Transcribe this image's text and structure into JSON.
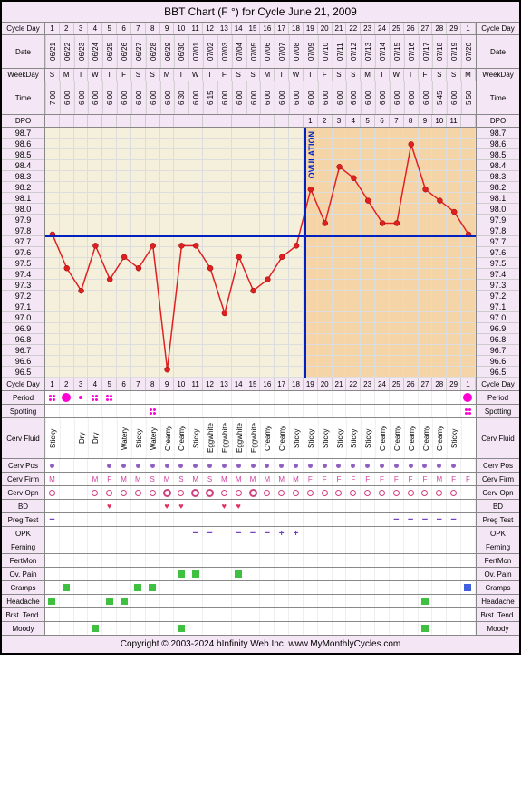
{
  "title": "BBT Chart (F °) for Cycle June 21, 2009",
  "footer": "Copyright © 2003-2024 bInfinity Web Inc.   www.MyMonthlyCycles.com",
  "days": 30,
  "ovulation_day": 18,
  "coverline_temp": 97.75,
  "ylim": [
    96.5,
    98.7
  ],
  "ytick_step": 0.1,
  "pre_ov_bg": "#f5f0dc",
  "post_ov_bg": "#f5d5a8",
  "line_color": "#e02020",
  "point_color": "#e02020",
  "labels": {
    "cycle_day": "Cycle Day",
    "date": "Date",
    "weekday": "WeekDay",
    "time": "Time",
    "dpo": "DPO",
    "period": "Period",
    "spotting": "Spotting",
    "cerv_fluid": "Cerv Fluid",
    "cerv_pos": "Cerv Pos",
    "cerv_firm": "Cerv Firm",
    "cerv_opn": "Cerv Opn",
    "bd": "BD",
    "preg_test": "Preg Test",
    "opk": "OPK",
    "ferning": "Ferning",
    "fertmon": "FertMon",
    "ov_pain": "Ov. Pain",
    "cramps": "Cramps",
    "headache": "Headache",
    "brst_tend": "Brst. Tend.",
    "moody": "Moody",
    "ovulation": "OVULATION"
  },
  "cycle_days": [
    1,
    2,
    3,
    4,
    5,
    6,
    7,
    8,
    9,
    10,
    11,
    12,
    13,
    14,
    15,
    16,
    17,
    18,
    19,
    20,
    21,
    22,
    23,
    24,
    25,
    26,
    27,
    28,
    29,
    1
  ],
  "dates": [
    "06/21",
    "06/22",
    "06/23",
    "06/24",
    "06/25",
    "06/26",
    "06/27",
    "06/28",
    "06/29",
    "06/30",
    "07/01",
    "07/02",
    "07/03",
    "07/04",
    "07/05",
    "07/06",
    "07/07",
    "07/08",
    "07/09",
    "07/10",
    "07/11",
    "07/12",
    "07/13",
    "07/14",
    "07/15",
    "07/16",
    "07/17",
    "07/18",
    "07/19",
    "07/20"
  ],
  "weekdays": [
    "S",
    "M",
    "T",
    "W",
    "T",
    "F",
    "S",
    "S",
    "M",
    "T",
    "W",
    "T",
    "F",
    "S",
    "S",
    "M",
    "T",
    "W",
    "T",
    "F",
    "S",
    "S",
    "M",
    "T",
    "W",
    "T",
    "F",
    "S",
    "S",
    "M"
  ],
  "times": [
    "7:00",
    "6:00",
    "6:00",
    "6:00",
    "6:00",
    "6:00",
    "6:00",
    "6:00",
    "6:00",
    "6:30",
    "6:00",
    "6:15",
    "6:00",
    "6:00",
    "6:00",
    "6:00",
    "6:00",
    "6:00",
    "6:00",
    "6:00",
    "6:00",
    "6:00",
    "6:00",
    "6:00",
    "6:00",
    "6:00",
    "6:00",
    "5:45",
    "6:00",
    "5:50"
  ],
  "dpo": [
    "",
    "",
    "",
    "",
    "",
    "",
    "",
    "",
    "",
    "",
    "",
    "",
    "",
    "",
    "",
    "",
    "",
    "",
    "1",
    "2",
    "3",
    "4",
    "5",
    "6",
    "7",
    "8",
    "9",
    "10",
    "11",
    ""
  ],
  "temps": [
    97.8,
    97.5,
    97.3,
    97.7,
    97.4,
    97.6,
    97.5,
    97.7,
    96.6,
    97.7,
    97.7,
    97.5,
    97.1,
    97.6,
    97.3,
    97.4,
    97.6,
    97.7,
    98.2,
    97.9,
    98.4,
    98.3,
    98.1,
    97.9,
    97.9,
    98.6,
    98.2,
    98.1,
    98.0,
    97.8
  ],
  "period": [
    "dots",
    "big",
    "dot",
    "dots",
    "dots",
    "",
    "",
    "",
    "",
    "",
    "",
    "",
    "",
    "",
    "",
    "",
    "",
    "",
    "",
    "",
    "",
    "",
    "",
    "",
    "",
    "",
    "",
    "",
    "",
    "big"
  ],
  "spotting": [
    "",
    "",
    "",
    "",
    "",
    "",
    "",
    "4",
    "",
    "",
    "",
    "",
    "",
    "",
    "",
    "",
    "",
    "",
    "",
    "",
    "",
    "",
    "",
    "",
    "",
    "",
    "",
    "",
    "",
    "4"
  ],
  "cerv_fluid": [
    "Sticky",
    "",
    "Dry",
    "Dry",
    "",
    "Watery",
    "Sticky",
    "Watery",
    "Creamy",
    "Creamy",
    "Sticky",
    "Eggwhite",
    "Eggwhite",
    "Eggwhite",
    "Eggwhite",
    "Creamy",
    "Creamy",
    "Sticky",
    "Sticky",
    "Sticky",
    "Sticky",
    "Sticky",
    "Sticky",
    "Creamy",
    "Creamy",
    "Creamy",
    "Creamy",
    "Creamy",
    "Sticky",
    ""
  ],
  "cerv_pos": [
    "d",
    "",
    "",
    "",
    "d",
    "d",
    "d",
    "d",
    "d",
    "d",
    "d",
    "d",
    "d",
    "d",
    "d",
    "d",
    "d",
    "d",
    "d",
    "d",
    "d",
    "d",
    "d",
    "d",
    "d",
    "d",
    "d",
    "d",
    "d",
    ""
  ],
  "cerv_firm": [
    "M",
    "",
    "",
    "M",
    "F",
    "M",
    "M",
    "S",
    "M",
    "S",
    "M",
    "S",
    "M",
    "M",
    "M",
    "M",
    "M",
    "M",
    "F",
    "F",
    "F",
    "F",
    "F",
    "F",
    "F",
    "F",
    "F",
    "M",
    "F",
    "F"
  ],
  "cerv_opn": [
    "o",
    "",
    "",
    "o",
    "o",
    "o",
    "o",
    "o",
    "O",
    "o",
    "O",
    "O",
    "o",
    "o",
    "O",
    "o",
    "o",
    "o",
    "o",
    "o",
    "o",
    "o",
    "o",
    "o",
    "o",
    "o",
    "o",
    "o",
    "o",
    ""
  ],
  "bd": [
    "",
    "",
    "",
    "",
    "h",
    "",
    "",
    "",
    "h",
    "h",
    "",
    "",
    "h",
    "h",
    "",
    "",
    "",
    "",
    "",
    "",
    "",
    "",
    "",
    "",
    "",
    "",
    "",
    "",
    "",
    ""
  ],
  "preg_test": [
    "-",
    "",
    "",
    "",
    "",
    "",
    "",
    "",
    "",
    "",
    "",
    "",
    "",
    "",
    "",
    "",
    "",
    "",
    "",
    "",
    "",
    "",
    "",
    "",
    "-",
    "-",
    "-",
    "-",
    "-",
    ""
  ],
  "opk": [
    "",
    "",
    "",
    "",
    "",
    "",
    "",
    "",
    "",
    "",
    "-",
    "-",
    "",
    "-",
    "-",
    "-",
    "+",
    "+",
    "",
    "",
    "",
    "",
    "",
    "",
    "",
    "",
    "",
    "",
    "",
    ""
  ],
  "ov_pain": [
    "",
    "",
    "",
    "",
    "",
    "",
    "",
    "",
    "",
    "g",
    "g",
    "",
    "",
    "g",
    "",
    "",
    "",
    "",
    "",
    "",
    "",
    "",
    "",
    "",
    "",
    "",
    "",
    "",
    "",
    ""
  ],
  "cramps": [
    "",
    "g",
    "",
    "",
    "",
    "",
    "g",
    "g",
    "",
    "",
    "",
    "",
    "",
    "",
    "",
    "",
    "",
    "",
    "",
    "",
    "",
    "",
    "",
    "",
    "",
    "",
    "",
    "",
    "",
    "b"
  ],
  "headache": [
    "g",
    "",
    "",
    "",
    "g",
    "g",
    "",
    "",
    "",
    "",
    "",
    "",
    "",
    "",
    "",
    "",
    "",
    "",
    "",
    "",
    "",
    "",
    "",
    "",
    "",
    "",
    "g",
    "",
    "",
    ""
  ],
  "moody": [
    "",
    "",
    "",
    "g",
    "",
    "",
    "",
    "",
    "",
    "g",
    "",
    "",
    "",
    "",
    "",
    "",
    "",
    "",
    "",
    "",
    "",
    "",
    "",
    "",
    "",
    "",
    "g",
    "",
    "",
    ""
  ]
}
